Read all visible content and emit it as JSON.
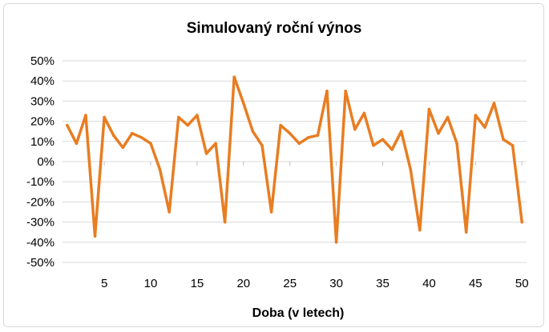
{
  "chart_data": {
    "type": "line",
    "title": "Simulovaný roční výnos",
    "xlabel": "Doba (v letech)",
    "ylabel": "",
    "xlim": [
      0.5,
      50.5
    ],
    "ylim": [
      -0.5,
      0.5
    ],
    "x_ticks": [
      5,
      10,
      15,
      20,
      25,
      30,
      35,
      40,
      45,
      50
    ],
    "x_tick_labels": [
      "5",
      "10",
      "15",
      "20",
      "25",
      "30",
      "35",
      "40",
      "45",
      "50"
    ],
    "y_ticks": [
      0.5,
      0.4,
      0.3,
      0.2,
      0.1,
      0,
      -0.1,
      -0.2,
      -0.3,
      -0.4,
      -0.5
    ],
    "y_tick_labels": [
      "50%",
      "40%",
      "30%",
      "20%",
      "10%",
      "0%",
      "-10%",
      "-20%",
      "-30%",
      "-40%",
      "-50%"
    ],
    "grid": {
      "horizontal": true,
      "vertical": false
    },
    "legend": "none",
    "series": [
      {
        "color": "#e87d22",
        "x": [
          1,
          2,
          3,
          4,
          5,
          6,
          7,
          8,
          9,
          10,
          11,
          12,
          13,
          14,
          15,
          16,
          17,
          18,
          19,
          20,
          21,
          22,
          23,
          24,
          25,
          26,
          27,
          28,
          29,
          30,
          31,
          32,
          33,
          34,
          35,
          36,
          37,
          38,
          39,
          40,
          41,
          42,
          43,
          44,
          45,
          46,
          47,
          48,
          49,
          50
        ],
        "values": [
          0.18,
          0.09,
          0.23,
          -0.37,
          0.22,
          0.13,
          0.07,
          0.14,
          0.12,
          0.09,
          -0.04,
          -0.25,
          0.22,
          0.18,
          0.23,
          0.04,
          0.09,
          -0.3,
          0.42,
          0.29,
          0.15,
          0.08,
          -0.25,
          0.18,
          0.14,
          0.09,
          0.12,
          0.13,
          0.35,
          -0.4,
          0.35,
          0.16,
          0.24,
          0.08,
          0.11,
          0.06,
          0.15,
          -0.04,
          -0.34,
          0.26,
          0.14,
          0.22,
          0.09,
          -0.35,
          0.23,
          0.17,
          0.29,
          0.11,
          0.08,
          -0.3
        ]
      }
    ]
  }
}
